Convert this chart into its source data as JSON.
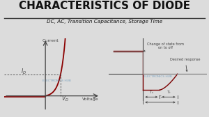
{
  "title": "CHARACTERISTICS OF DIODE",
  "subtitle": "DC, AC, Transition Capacitance, Storage Time",
  "bg_color": "#dcdcdc",
  "title_color": "#111111",
  "subtitle_color": "#111111",
  "diode_curve_color": "#8b0000",
  "axis_color": "#444444",
  "left_panel": {
    "xlabel": "Voltage",
    "ylabel": "Current",
    "id_label": "I_D",
    "vd_label": "V_D",
    "watermark": "ELECTRONICS HUB"
  },
  "right_panel": {
    "annotation1": "Change of state from\non to off",
    "annotation2": "Desired response",
    "ts_label": "T_s",
    "tt_label": "T_t",
    "tr_label": "T_r",
    "signal_color": "#7a0000",
    "desired_color": "#888888",
    "watermark": "ELECTRONICS HUB"
  }
}
